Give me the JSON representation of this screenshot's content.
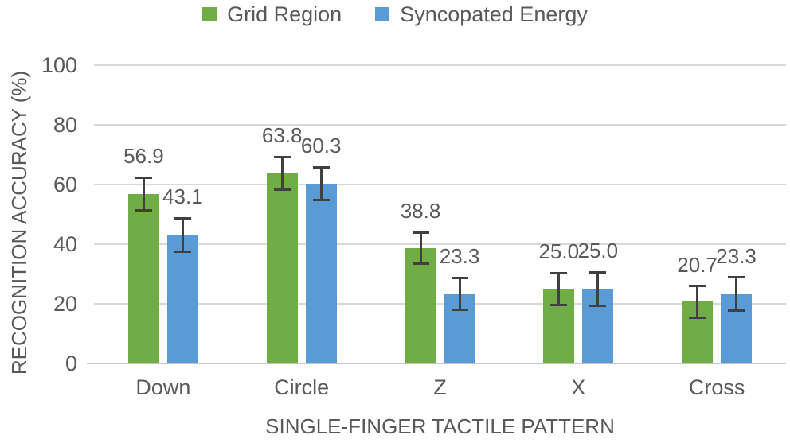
{
  "figure": {
    "background": "#FFFFFF",
    "text_color": "#595959",
    "gridline_color": "#D9D9D9",
    "axis_line_color": "#C4C4C4",
    "error_bar_color": "#404040"
  },
  "chart_data": {
    "type": "bar",
    "title": "",
    "categories": [
      "Down",
      "Circle",
      "Z",
      "X",
      "Cross"
    ],
    "series": [
      {
        "name": "Grid Region",
        "color": "#70AD47",
        "values": [
          56.9,
          63.8,
          38.8,
          25.0,
          20.7
        ],
        "errors": [
          5.5,
          5.5,
          5.2,
          5.4,
          5.3
        ]
      },
      {
        "name": "Syncopated Energy",
        "color": "#5B9BD5",
        "values": [
          43.1,
          60.3,
          23.3,
          25.0,
          23.3
        ],
        "errors": [
          5.6,
          5.5,
          5.4,
          5.6,
          5.6
        ]
      }
    ],
    "xlabel": "SINGLE-FINGER TACTILE PATTERN",
    "ylabel": "RECOGNITION ACCURACY (%)",
    "ylim": [
      0,
      100
    ],
    "yticks": [
      0,
      20,
      40,
      60,
      80,
      100
    ],
    "grid": true,
    "legend_position": "top",
    "data_labels": "one_decimal",
    "error_bars": true
  }
}
